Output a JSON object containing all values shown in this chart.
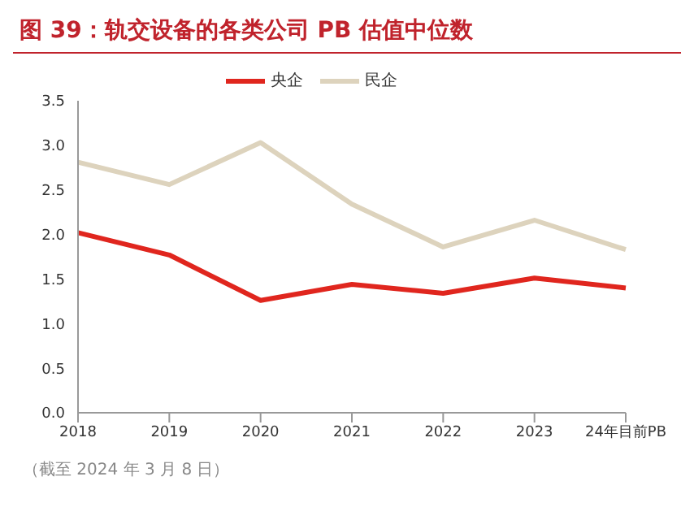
{
  "chart_data": {
    "type": "line",
    "title": "图 39：轨交设备的各类公司 PB 估值中位数",
    "categories": [
      "2018",
      "2019",
      "2020",
      "2021",
      "2022",
      "2023",
      "24年目前PB"
    ],
    "series": [
      {
        "name": "央企",
        "color": "#e0261e",
        "values": [
          2.02,
          1.77,
          1.26,
          1.44,
          1.34,
          1.51,
          1.4
        ]
      },
      {
        "name": "民企",
        "color": "#ddd3bd",
        "values": [
          2.81,
          2.56,
          3.03,
          2.34,
          1.86,
          2.16,
          1.83
        ]
      }
    ],
    "ylim": [
      0,
      3.5
    ],
    "yticks": [
      {
        "value": 0,
        "label": "0.0"
      },
      0.5,
      {
        "value": 1,
        "label": "1.0"
      },
      1.5,
      {
        "value": 2,
        "label": "2.0"
      },
      2.5,
      {
        "value": 3,
        "label": "3.0"
      },
      3.5
    ],
    "grid": false,
    "legend": "top",
    "marker": "none",
    "annotations": [
      "（截至 2024 年 3 月 8 日）"
    ]
  }
}
